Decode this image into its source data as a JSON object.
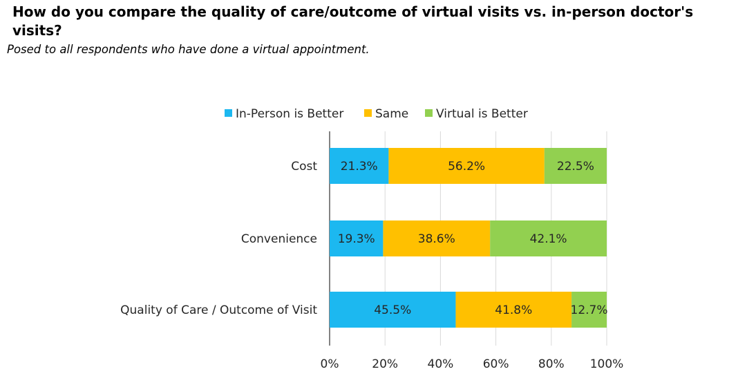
{
  "header": {
    "title": "How do you compare the quality of care/outcome of virtual visits vs. in-person doctor's visits?",
    "subtitle": "Posed to all respondents who have done a virtual appointment."
  },
  "colors": {
    "in_person_better": "#1cb8f0",
    "same": "#ffc000",
    "virtual_better": "#92d050",
    "axis": "#404040",
    "text": "#262626"
  },
  "chart_data": {
    "type": "bar",
    "orientation": "horizontal",
    "stacked": true,
    "percent_stacked": true,
    "categories": [
      "Cost",
      "Convenience",
      "Quality of Care / Outcome of Visit"
    ],
    "series": [
      {
        "name": "In-Person is Better",
        "color": "#1cb8f0",
        "values": [
          21.3,
          19.3,
          45.5
        ]
      },
      {
        "name": "Same",
        "color": "#ffc000",
        "values": [
          56.2,
          38.6,
          41.8
        ]
      },
      {
        "name": "Virtual is Better",
        "color": "#92d050",
        "values": [
          22.5,
          42.1,
          12.7
        ]
      }
    ],
    "data_labels": [
      [
        "21.3%",
        "19.3%",
        "45.5%"
      ],
      [
        "56.2%",
        "38.6%",
        "41.8%"
      ],
      [
        "22.5%",
        "42.1%",
        "12.7%"
      ]
    ],
    "xlim": [
      0,
      100
    ],
    "xticks": [
      "0%",
      "20%",
      "40%",
      "60%",
      "80%",
      "100%"
    ],
    "grid": true,
    "legend_position": "top"
  }
}
